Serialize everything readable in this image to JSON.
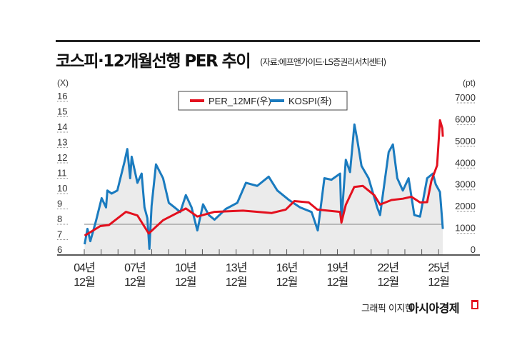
{
  "header": {
    "title": "코스피·12개월선행 PER 추이",
    "source": "(자료:에프앤가이드·LS증권리서치센터)"
  },
  "footer": {
    "credit": "그래픽 이지현",
    "logo": "아시아경제"
  },
  "colors": {
    "red": "#e3101e",
    "blue": "#1a7bbf",
    "fill": "#ebebeb",
    "refline": "#9a9a9a"
  },
  "chart_data": {
    "type": "line",
    "legend_position": "top-center",
    "grid": false,
    "y_left": {
      "unit": "(X)",
      "range": [
        6,
        16
      ],
      "ticks": [
        "16",
        "15",
        "14",
        "13",
        "12",
        "11",
        "10",
        "9",
        "8",
        "7",
        "6"
      ]
    },
    "y_right": {
      "unit": "(pt)",
      "range": [
        0,
        7000
      ],
      "ticks": [
        "7000",
        "6000",
        "5000",
        "4000",
        "3000",
        "2000",
        "1000",
        "0"
      ]
    },
    "x_ticks": [
      {
        "year": "04년",
        "month": "12월",
        "x": 2004.92
      },
      {
        "year": "07년",
        "month": "12월",
        "x": 2007.92
      },
      {
        "year": "10년",
        "month": "12월",
        "x": 2010.92
      },
      {
        "year": "13년",
        "month": "12월",
        "x": 2013.92
      },
      {
        "year": "16년",
        "month": "12월",
        "x": 2016.92
      },
      {
        "year": "19년",
        "month": "12월",
        "x": 2019.92
      },
      {
        "year": "22년",
        "month": "12월",
        "x": 2022.92
      },
      {
        "year": "25년",
        "month": "12월",
        "x": 2025.92
      }
    ],
    "reference_line_left": 8,
    "series": [
      {
        "name": "PER_12MF(우)",
        "color": "#e3101e",
        "axis": "right",
        "x": [
          2004.94,
          2005.87,
          2006.38,
          2007.39,
          2008.07,
          2008.74,
          2009.59,
          2010.94,
          2011.62,
          2012.64,
          2014.33,
          2016.02,
          2016.86,
          2017.37,
          2018.22,
          2018.73,
          2020.08,
          2020.16,
          2020.42,
          2020.92,
          2021.43,
          2022.11,
          2022.45,
          2023.13,
          2023.8,
          2024.31,
          2024.82,
          2025.24,
          2025.49,
          2025.83,
          2026.0,
          2026.14,
          2026.17
        ],
        "y": [
          890,
          1330,
          1380,
          1985,
          1820,
          990,
          1600,
          2140,
          1770,
          1985,
          2040,
          1930,
          2090,
          2480,
          2420,
          2090,
          1985,
          1490,
          2310,
          3130,
          3180,
          2750,
          2320,
          2530,
          2590,
          2680,
          2420,
          2430,
          3410,
          4120,
          6200,
          5830,
          5440
        ]
      },
      {
        "name": "KOSPI(좌)",
        "color": "#1a7bbf",
        "axis": "left",
        "area": true,
        "x": [
          2004.94,
          2005.11,
          2005.28,
          2005.61,
          2005.95,
          2006.21,
          2006.29,
          2006.54,
          2006.88,
          2007.31,
          2007.47,
          2007.64,
          2007.73,
          2008.07,
          2008.32,
          2008.49,
          2008.66,
          2008.78,
          2008.91,
          2009.17,
          2009.59,
          2009.93,
          2010.27,
          2010.61,
          2010.94,
          2011.28,
          2011.62,
          2011.96,
          2012.3,
          2012.64,
          2013.31,
          2013.99,
          2014.5,
          2015.17,
          2015.85,
          2016.36,
          2017.03,
          2017.71,
          2018.39,
          2018.76,
          2019.15,
          2019.57,
          2020.08,
          2020.16,
          2020.42,
          2020.67,
          2020.93,
          2021.1,
          2021.35,
          2021.77,
          2022.28,
          2022.45,
          2022.96,
          2023.21,
          2023.47,
          2023.8,
          2024.14,
          2024.48,
          2024.82,
          2025.24,
          2025.58,
          2025.75,
          2026.0,
          2026.17
        ],
        "y": [
          6.7,
          7.7,
          6.9,
          8.2,
          9.7,
          9.1,
          10.2,
          10.0,
          10.2,
          12.1,
          12.9,
          11.0,
          12.4,
          10.7,
          11.3,
          9.1,
          8.4,
          6.4,
          9.2,
          11.9,
          11.0,
          9.4,
          9.1,
          8.8,
          9.9,
          9.1,
          7.6,
          9.3,
          8.6,
          8.3,
          9.0,
          9.4,
          10.7,
          10.5,
          11.1,
          10.2,
          9.6,
          9.1,
          8.8,
          7.6,
          11.0,
          10.9,
          11.3,
          8.2,
          12.2,
          11.4,
          14.5,
          13.5,
          11.8,
          11.0,
          9.1,
          8.6,
          12.7,
          13.2,
          11.0,
          10.2,
          11.0,
          8.6,
          8.5,
          11.0,
          11.3,
          10.6,
          10.1,
          7.7
        ]
      }
    ]
  }
}
